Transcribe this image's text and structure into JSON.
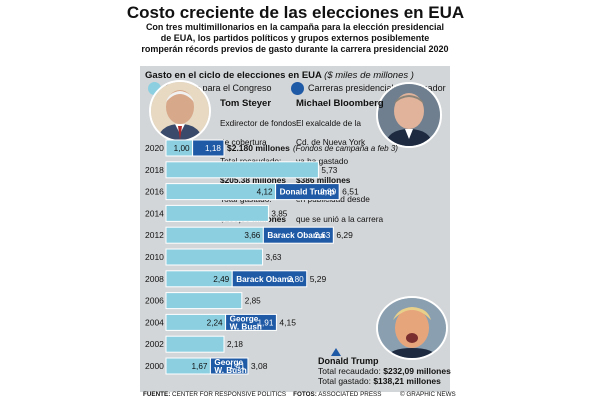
{
  "header": {
    "title": "Costo creciente de las elecciones en EUA",
    "subtitle": "Con tres multimillonarios en la campaña para la elección presidencial de EUA, los partidos políticos y grupos externos posiblemente romperán récords previos de gasto durante la carrera presidencial 2020"
  },
  "chart_header": {
    "label": "Gasto en el ciclo de elecciones en EUA",
    "unit": "($ miles de millones )"
  },
  "legend": {
    "congress": "Carreras para el Congreso",
    "presidential": "Carreras presidenciales y ganador"
  },
  "colors": {
    "congress": "#8ccfe0",
    "presidential": "#1f5aa6",
    "panel": "#d3d6d8"
  },
  "steyer": {
    "name": "Tom Steyer",
    "line1": "Exdirector de fondos",
    "line2": "de cobertura",
    "line3": "Total recaudado:",
    "line4": "$205,38 millones",
    "line5": "Total gastado:",
    "line6": "$199,99 millones"
  },
  "bloomberg": {
    "name": "Michael Bloomberg",
    "line1": "El exalcalde de la",
    "line2": "Cd. de Nueva York",
    "line3": "ya ha gastado",
    "line4": "$386 millones",
    "line5": "en publicidad desde",
    "line6": "que se unió a la carrera"
  },
  "trump": {
    "name": "Donald Trump",
    "raised_label": "Total recaudado:",
    "raised_value": "$232,09 millones",
    "spent_label": "Total gastado:",
    "spent_value": "$138,21 millones"
  },
  "footer": {
    "source_label": "FUENTE:",
    "source": "CENTER FOR RESPONSIVE POLITICS",
    "photos_label": "FOTOS:",
    "photos": "ASSOCIATED PRESS",
    "credit": "© GRAPHIC NEWS"
  },
  "chart_data": {
    "type": "bar",
    "orientation": "horizontal",
    "stacked": true,
    "categories": [
      "2020",
      "2018",
      "2016",
      "2014",
      "2012",
      "2010",
      "2008",
      "2006",
      "2004",
      "2002",
      "2000"
    ],
    "series": [
      {
        "name": "Carreras para el Congreso",
        "values": [
          1.0,
          5.73,
          4.12,
          3.85,
          3.66,
          3.63,
          2.49,
          2.85,
          2.24,
          2.18,
          1.67
        ]
      },
      {
        "name": "Carreras presidenciales y ganador",
        "values": [
          1.18,
          null,
          2.39,
          null,
          2.63,
          null,
          2.8,
          null,
          1.91,
          null,
          1.41
        ]
      }
    ],
    "congress_labels": [
      "1,00",
      "5,73",
      "4,12",
      "3,85",
      "3,66",
      "3,63",
      "2,49",
      "2,85",
      "2,24",
      "2,18",
      "1,67"
    ],
    "presidential_labels": [
      "1,18",
      "",
      "2,39",
      "",
      "2,63",
      "",
      "2,80",
      "",
      "1,91",
      "",
      "1,41"
    ],
    "total_labels": [
      "$2.180 millones",
      "",
      "6,51",
      "",
      "6,29",
      "",
      "5,29",
      "",
      "4,15",
      "",
      "3,08"
    ],
    "winners": [
      "",
      "",
      "Donald Trump",
      "",
      "Barack Obama",
      "",
      "Barack Obama",
      "",
      "George W. Bush",
      "",
      "George W. Bush"
    ],
    "annotation_2020": "(Fondos de campaña a feb 3)",
    "xlim": [
      0,
      7
    ]
  }
}
